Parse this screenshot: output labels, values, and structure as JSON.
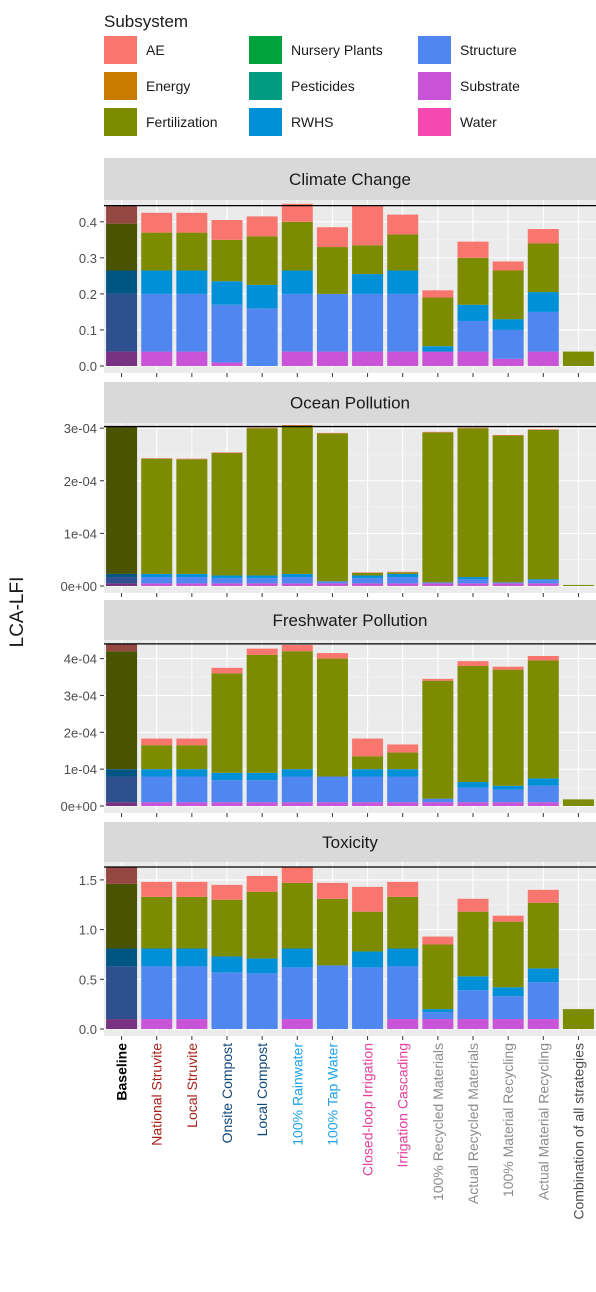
{
  "chart_data": {
    "type": "bar",
    "stacked": true,
    "ylabel": "LCA-LFI",
    "legend": {
      "title": "Subsystem",
      "position": "top",
      "entries": [
        {
          "name": "AE",
          "color": "#F8766D"
        },
        {
          "name": "Energy",
          "color": "#C77C00"
        },
        {
          "name": "Fertilization",
          "color": "#7C8B00"
        },
        {
          "name": "Nursery Plants",
          "color": "#00A23C"
        },
        {
          "name": "Pesticides",
          "color": "#009B80"
        },
        {
          "name": "RWHS",
          "color": "#0090D8"
        },
        {
          "name": "Structure",
          "color": "#4F86F0"
        },
        {
          "name": "Substrate",
          "color": "#C954D8"
        },
        {
          "name": "Water",
          "color": "#F448B0"
        }
      ]
    },
    "categories": [
      {
        "name": "Baseline",
        "color": "#000000",
        "bold": true
      },
      {
        "name": "National Struvite",
        "color": "#A9221C"
      },
      {
        "name": "Local Struvite",
        "color": "#A9221C"
      },
      {
        "name": "Onsite Compost",
        "color": "#12477A"
      },
      {
        "name": "Local Compost",
        "color": "#12477A"
      },
      {
        "name": "100% Rainwater",
        "color": "#1FA3E8"
      },
      {
        "name": "100% Tap Water",
        "color": "#1FA3E8"
      },
      {
        "name": "Closed-loop Irrigation",
        "color": "#E5409B"
      },
      {
        "name": "Irrigation Cascading",
        "color": "#E5409B"
      },
      {
        "name": "100% Recycled Materials",
        "color": "#8C8C8C"
      },
      {
        "name": "Actual Recycled Materials",
        "color": "#8C8C8C"
      },
      {
        "name": "100% Material Recycling",
        "color": "#8C8C8C"
      },
      {
        "name": "Actual Material Recycling",
        "color": "#8C8C8C"
      },
      {
        "name": "Combination of all strategies",
        "color": "#4D4D4D"
      }
    ],
    "stack_order": [
      "Substrate",
      "Structure",
      "RWHS",
      "Fertilization",
      "AE"
    ],
    "highlight_first_bar": true,
    "panels": [
      {
        "title": "Climate Change",
        "ylim": [
          0,
          0.455
        ],
        "ticks": [
          0.0,
          0.1,
          0.2,
          0.3,
          0.4
        ],
        "tick_labels": [
          "0.0",
          "0.1",
          "0.2",
          "0.3",
          "0.4"
        ],
        "baseline_ref": 0.445,
        "series": [
          {
            "name": "Substrate",
            "values": [
              0.04,
              0.04,
              0.04,
              0.01,
              0.0,
              0.04,
              0.04,
              0.04,
              0.04,
              0.04,
              0.04,
              0.02,
              0.04,
              0.0
            ]
          },
          {
            "name": "Structure",
            "values": [
              0.16,
              0.16,
              0.16,
              0.16,
              0.16,
              0.16,
              0.16,
              0.16,
              0.16,
              0.0,
              0.085,
              0.08,
              0.11,
              0.0
            ]
          },
          {
            "name": "RWHS",
            "values": [
              0.065,
              0.065,
              0.065,
              0.065,
              0.065,
              0.065,
              0.0,
              0.055,
              0.065,
              0.015,
              0.045,
              0.03,
              0.055,
              0.0
            ]
          },
          {
            "name": "Fertilization",
            "values": [
              0.13,
              0.105,
              0.105,
              0.115,
              0.135,
              0.135,
              0.13,
              0.08,
              0.1,
              0.135,
              0.13,
              0.135,
              0.135,
              0.04
            ]
          },
          {
            "name": "AE",
            "values": [
              0.05,
              0.055,
              0.055,
              0.055,
              0.055,
              0.05,
              0.055,
              0.11,
              0.055,
              0.02,
              0.045,
              0.025,
              0.04,
              0.0
            ]
          }
        ]
      },
      {
        "title": "Ocean Pollution",
        "ylim": [
          0,
          0.000306
        ],
        "ticks": [
          0,
          0.0001,
          0.0002,
          0.0003
        ],
        "tick_labels": [
          "0e+00",
          "1e-04",
          "2e-04",
          "3e-04"
        ],
        "baseline_ref": 0.000303,
        "series": [
          {
            "name": "Substrate",
            "values": [
              5e-06,
              5e-06,
              5e-06,
              5e-06,
              5e-06,
              5e-06,
              5e-06,
              5e-06,
              5e-06,
              5e-06,
              5e-06,
              5e-06,
              5e-06,
              0.0
            ]
          },
          {
            "name": "Structure",
            "values": [
              1.2e-05,
              1.2e-05,
              1.2e-05,
              1e-05,
              1e-05,
              1.2e-05,
              4e-06,
              1e-05,
              1.2e-05,
              2e-06,
              8e-06,
              2e-06,
              6e-06,
              0.0
            ]
          },
          {
            "name": "RWHS",
            "values": [
              6e-06,
              6e-06,
              6e-06,
              5e-06,
              5e-06,
              6e-06,
              0.0,
              5e-06,
              6e-06,
              0.0,
              4e-06,
              0.0,
              2e-06,
              0.0
            ]
          },
          {
            "name": "Fertilization",
            "values": [
              0.00028,
              0.000219,
              0.000218,
              0.000233,
              0.00028,
              0.000282,
              0.000281,
              5e-06,
              3e-06,
              0.000285,
              0.000283,
              0.000279,
              0.000284,
              2e-06
            ]
          },
          {
            "name": "AE",
            "values": [
              1e-06,
              1e-06,
              1e-06,
              1e-06,
              1e-06,
              1e-06,
              1e-06,
              1e-06,
              1e-06,
              1e-06,
              1e-06,
              1e-06,
              1e-06,
              0.0
            ]
          }
        ]
      },
      {
        "title": "Freshwater Pollution",
        "ylim": [
          0,
          0.000445
        ],
        "ticks": [
          0,
          0.0001,
          0.0002,
          0.0003,
          0.0004
        ],
        "tick_labels": [
          "0e+00",
          "1e-04",
          "2e-04",
          "3e-04",
          "4e-04"
        ],
        "baseline_ref": 0.00044,
        "series": [
          {
            "name": "Substrate",
            "values": [
              1e-05,
              1e-05,
              1e-05,
              1e-05,
              1e-05,
              1e-05,
              1e-05,
              1e-05,
              1e-05,
              1e-05,
              1e-05,
              1e-05,
              1e-05,
              0.0
            ]
          },
          {
            "name": "Structure",
            "values": [
              7e-05,
              7e-05,
              7e-05,
              6e-05,
              6e-05,
              7e-05,
              7e-05,
              7e-05,
              7e-05,
              1e-05,
              4e-05,
              3.5e-05,
              4.5e-05,
              0.0
            ]
          },
          {
            "name": "RWHS",
            "values": [
              2e-05,
              2e-05,
              2e-05,
              2e-05,
              2e-05,
              2e-05,
              0.0,
              2e-05,
              2e-05,
              0.0,
              1.5e-05,
              1e-05,
              2e-05,
              0.0
            ]
          },
          {
            "name": "Fertilization",
            "values": [
              0.00032,
              6.5e-05,
              6.5e-05,
              0.00027,
              0.00032,
              0.00032,
              0.00032,
              3.5e-05,
              4.5e-05,
              0.00032,
              0.000315,
              0.000315,
              0.00032,
              1.8e-05
            ]
          },
          {
            "name": "AE",
            "values": [
              2e-05,
              1.8e-05,
              1.8e-05,
              1.5e-05,
              1.7e-05,
              1.7e-05,
              1.5e-05,
              4.8e-05,
              2.2e-05,
              5e-06,
              1.3e-05,
              8e-06,
              1.2e-05,
              0.0
            ]
          }
        ]
      },
      {
        "title": "Toxicity",
        "ylim": [
          0,
          1.66
        ],
        "ticks": [
          0.0,
          0.5,
          1.0,
          1.5
        ],
        "tick_labels": [
          "0.0",
          "0.5",
          "1.0",
          "1.5"
        ],
        "baseline_ref": 1.63,
        "series": [
          {
            "name": "Substrate",
            "values": [
              0.1,
              0.1,
              0.1,
              0.0,
              0.0,
              0.1,
              0.0,
              0.0,
              0.1,
              0.1,
              0.1,
              0.1,
              0.1,
              0.0
            ]
          },
          {
            "name": "Structure",
            "values": [
              0.53,
              0.53,
              0.53,
              0.57,
              0.56,
              0.52,
              0.64,
              0.62,
              0.53,
              0.07,
              0.29,
              0.23,
              0.37,
              0.0
            ]
          },
          {
            "name": "RWHS",
            "values": [
              0.18,
              0.18,
              0.18,
              0.16,
              0.15,
              0.19,
              0.0,
              0.16,
              0.18,
              0.03,
              0.14,
              0.09,
              0.14,
              0.0
            ]
          },
          {
            "name": "Fertilization",
            "values": [
              0.65,
              0.52,
              0.52,
              0.57,
              0.67,
              0.66,
              0.67,
              0.4,
              0.52,
              0.65,
              0.65,
              0.66,
              0.66,
              0.2
            ]
          },
          {
            "name": "AE",
            "values": [
              0.17,
              0.15,
              0.15,
              0.15,
              0.16,
              0.16,
              0.16,
              0.25,
              0.15,
              0.08,
              0.13,
              0.06,
              0.13,
              0.0
            ]
          }
        ]
      }
    ]
  }
}
